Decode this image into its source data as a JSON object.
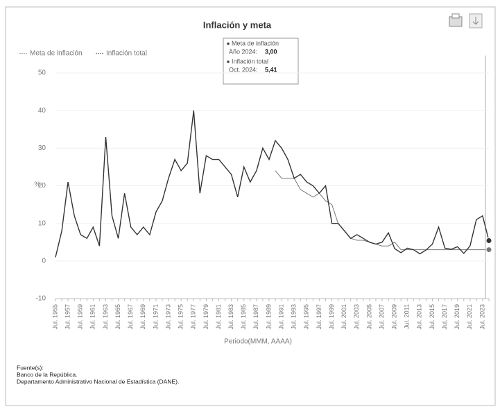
{
  "chart_data": {
    "type": "line",
    "title": "Inflación y meta",
    "y_label": "%",
    "x_label": "Periodo(MMM, AAAA)",
    "categories": [
      "Jul. 1955",
      null,
      "Jul. 1957",
      null,
      "Jul. 1959",
      null,
      "Jul. 1961",
      null,
      "Jul. 1963",
      null,
      "Jul. 1965",
      null,
      "Jul. 1967",
      null,
      "Jul. 1969",
      null,
      "Jul. 1971",
      null,
      "Jul. 1973",
      null,
      "Jul. 1975",
      null,
      "Jul. 1977",
      null,
      "Jul. 1979",
      null,
      "Jul. 1981",
      null,
      "Jul. 1983",
      null,
      "Jul. 1985",
      null,
      "Jul. 1987",
      null,
      "Jul. 1989",
      null,
      "Jul. 1991",
      null,
      "Jul. 1993",
      null,
      "Jul. 1995",
      null,
      "Jul. 1997",
      null,
      "Jul. 1999",
      null,
      "Jul. 2001",
      null,
      "Jul. 2003",
      null,
      "Jul. 2005",
      null,
      "Jul. 2007",
      null,
      "Jul. 2009",
      null,
      "Jul. 2011",
      null,
      "Jul. 2013",
      null,
      "Jul. 2015",
      null,
      "Jul. 2017",
      null,
      "Jul. 2019",
      null,
      "Jul. 2021",
      null,
      "Jul. 2023",
      null
    ],
    "series": [
      {
        "name": "Meta de inflación",
        "color": "#777777",
        "values": [
          null,
          null,
          null,
          null,
          null,
          null,
          null,
          null,
          null,
          null,
          null,
          null,
          null,
          null,
          null,
          null,
          null,
          null,
          null,
          null,
          null,
          null,
          null,
          null,
          null,
          null,
          null,
          null,
          null,
          null,
          null,
          null,
          null,
          null,
          null,
          24,
          22,
          22,
          22,
          19,
          18,
          17,
          18,
          16,
          15,
          10,
          8,
          6,
          5.5,
          5.5,
          5,
          4.5,
          4,
          4,
          5,
          3,
          3,
          3,
          3,
          3,
          3,
          3,
          3,
          3,
          3,
          3,
          3,
          3,
          3,
          3
        ]
      },
      {
        "name": "Inflación total",
        "color": "#333333",
        "values": [
          1,
          8,
          21,
          12,
          7,
          6,
          9,
          4,
          33,
          12,
          6,
          18,
          9,
          7,
          9,
          7,
          13,
          16,
          22,
          27,
          24,
          26,
          40,
          18,
          28,
          27,
          27,
          25,
          23,
          17,
          25,
          21,
          24,
          30,
          27,
          32,
          30,
          27,
          22,
          23,
          21,
          20,
          18,
          20,
          10,
          10,
          8,
          6,
          7,
          6,
          5,
          4.5,
          5,
          7.5,
          3.3,
          2.2,
          3.4,
          3,
          1.9,
          2.9,
          4.5,
          9,
          3.4,
          3.1,
          3.8,
          2,
          4,
          11,
          12,
          5.41
        ]
      }
    ],
    "ylim": [
      -10,
      50
    ],
    "yticks": [
      -10,
      0,
      10,
      20,
      30,
      40,
      50
    ],
    "grid": true,
    "legend": "top-left",
    "tooltip": [
      {
        "name": "Meta de inflación",
        "period": "Año 2024:",
        "value": "3,00"
      },
      {
        "name": "Inflación total",
        "period": "Oct. 2024:",
        "value": "5,41"
      }
    ],
    "source": [
      "Fuente(s):",
      "Banco de la República.",
      "Departamento Administrativo Nacional de Estadística (DANE)."
    ]
  }
}
